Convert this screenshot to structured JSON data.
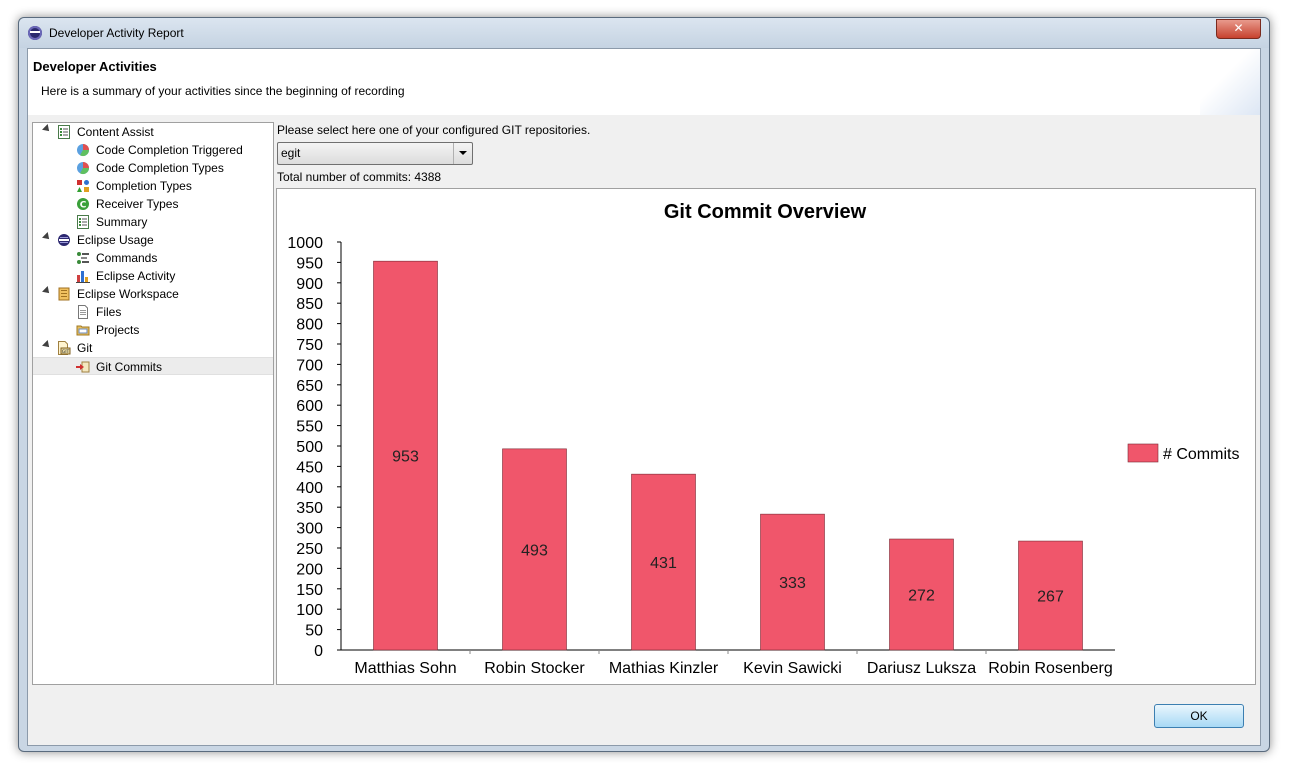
{
  "window": {
    "title": "Developer Activity Report",
    "close_glyph": "✕"
  },
  "banner": {
    "title": "Developer Activities",
    "description": "Here is a summary of your activities since the beginning of recording"
  },
  "tree": {
    "items": [
      {
        "label": "Content Assist",
        "level": 0,
        "expanded": true,
        "icon": "summary-icon"
      },
      {
        "label": "Code Completion Triggered",
        "level": 1,
        "icon": "pie-chart-icon"
      },
      {
        "label": "Code Completion Types",
        "level": 1,
        "icon": "pie-chart-icon"
      },
      {
        "label": "Completion Types",
        "level": 1,
        "icon": "shapes-icon"
      },
      {
        "label": "Receiver Types",
        "level": 1,
        "icon": "class-icon"
      },
      {
        "label": "Summary",
        "level": 1,
        "icon": "summary-icon"
      },
      {
        "label": "Eclipse Usage",
        "level": 0,
        "expanded": true,
        "icon": "eclipse-icon"
      },
      {
        "label": "Commands",
        "level": 1,
        "icon": "commands-icon"
      },
      {
        "label": "Eclipse Activity",
        "level": 1,
        "icon": "bar-chart-icon"
      },
      {
        "label": "Eclipse Workspace",
        "level": 0,
        "expanded": true,
        "icon": "workspace-icon"
      },
      {
        "label": "Files",
        "level": 1,
        "icon": "file-icon"
      },
      {
        "label": "Projects",
        "level": 1,
        "icon": "folder-icon"
      },
      {
        "label": "Git",
        "level": 0,
        "expanded": true,
        "icon": "git-icon"
      },
      {
        "label": "Git Commits",
        "level": 1,
        "icon": "commit-icon",
        "selected": true
      }
    ]
  },
  "repo": {
    "prompt": "Please select here one of your configured GIT repositories.",
    "selected": "egit",
    "total_commits": "Total number of commits: 4388"
  },
  "chart_data": {
    "type": "bar",
    "title": "Git Commit Overview",
    "categories": [
      "Matthias Sohn",
      "Robin Stocker",
      "Mathias Kinzler",
      "Kevin Sawicki",
      "Dariusz Luksza",
      "Robin Rosenberg"
    ],
    "series": [
      {
        "name": "# Commits",
        "values": [
          953,
          493,
          431,
          333,
          272,
          267
        ],
        "color": "#f0566b"
      }
    ],
    "ylim": [
      0,
      1000
    ],
    "ytick_step": 50,
    "legend": "right",
    "grid": false
  },
  "buttons": {
    "ok": "OK"
  }
}
